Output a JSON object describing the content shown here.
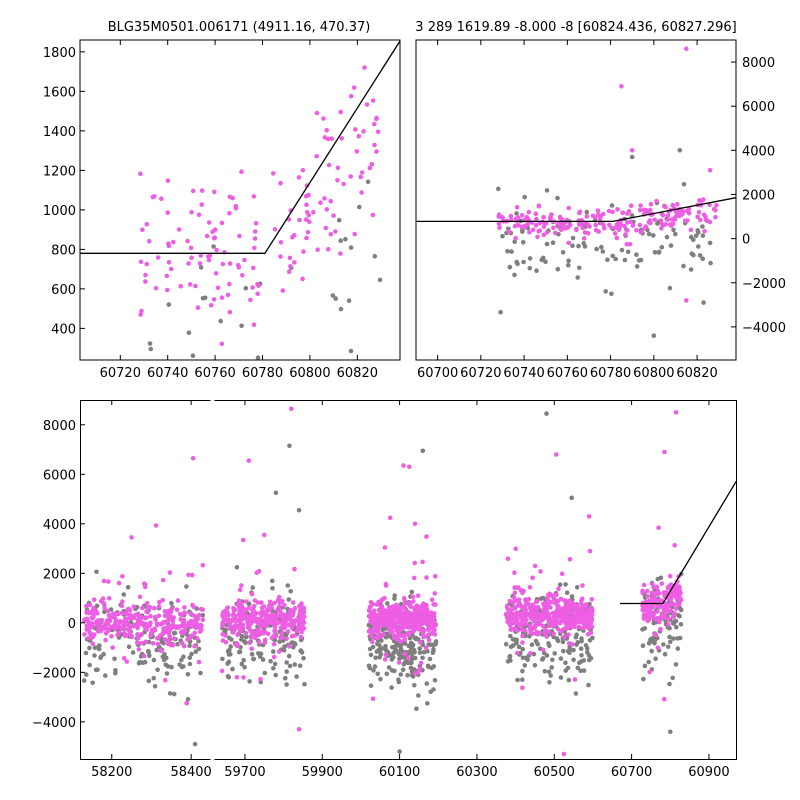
{
  "colors": {
    "magenta": "#ee5ee4",
    "gray": "#7f7f7f",
    "axis": "#000000",
    "background": "#ffffff"
  },
  "chart_data": [
    {
      "id": "zoom",
      "type": "scatter",
      "title": "BLG35M0501.006171 (4911.16, 470.37)",
      "xlabel": "",
      "ylabel": "",
      "xlim": [
        60703,
        60838
      ],
      "ylim": [
        240,
        1860
      ],
      "xticks": [
        60720,
        60740,
        60760,
        60780,
        60800,
        60820
      ],
      "yticks": [
        400,
        600,
        800,
        1000,
        1200,
        1400,
        1600,
        1800
      ],
      "model": [
        [
          60703,
          780
        ],
        [
          60781,
          780
        ],
        [
          60838,
          1855
        ]
      ],
      "series": [
        {
          "name": "magenta points",
          "color_key": "magenta",
          "x_range": [
            60728,
            60829
          ],
          "y_base": 780,
          "y_slope_start": 60781,
          "y_slope": 13.7,
          "noise": 190,
          "count": 165
        },
        {
          "name": "gray points",
          "color_key": "gray",
          "x_range": [
            60732,
            60830
          ],
          "y_base": 420,
          "y_slope_start": 60790,
          "y_slope": 9,
          "noise": 320,
          "count": 40
        }
      ]
    },
    {
      "id": "season",
      "type": "scatter",
      "title": "3 289 1619.89 -8.000 -8 [60824.436, 60827.296]",
      "xlabel": "",
      "ylabel": "",
      "xlim": [
        60690,
        60838
      ],
      "ylim": [
        -5500,
        9000
      ],
      "y_axis_side": "right",
      "xticks": [
        60700,
        60720,
        60740,
        60760,
        60780,
        60800,
        60820
      ],
      "yticks": [
        -4000,
        -2000,
        0,
        2000,
        4000,
        6000,
        8000
      ],
      "model": [
        [
          60690,
          780
        ],
        [
          60781,
          780
        ],
        [
          60838,
          1855
        ]
      ],
      "series": [
        {
          "name": "magenta points",
          "color_key": "magenta",
          "x_range": [
            60728,
            60829
          ],
          "y_base": 650,
          "y_slope_start": 60781,
          "y_slope": 13.7,
          "noise": 350,
          "count": 210
        },
        {
          "name": "gray points",
          "color_key": "gray",
          "x_range": [
            60728,
            60829
          ],
          "y_base": -200,
          "y_slope_start": 60781,
          "y_slope": 5,
          "noise": 900,
          "count": 120
        }
      ],
      "outliers": [
        [
          60785,
          6900,
          "magenta"
        ],
        [
          60815,
          8600,
          "magenta"
        ],
        [
          60815,
          -2800,
          "magenta"
        ],
        [
          60790,
          4000,
          "magenta"
        ],
        [
          60812,
          4000,
          "gray"
        ],
        [
          60790,
          3700,
          "gray"
        ],
        [
          60769,
          1200,
          "gray"
        ],
        [
          60800,
          -4400,
          "gray"
        ],
        [
          60826,
          3100,
          "magenta"
        ],
        [
          60823,
          -2900,
          "gray"
        ]
      ]
    },
    {
      "id": "full",
      "type": "scatter",
      "title": "",
      "xlabel": "",
      "ylabel": "",
      "ylim": [
        -5500,
        9000
      ],
      "yticks": [
        -4000,
        -2000,
        0,
        2000,
        4000,
        6000,
        8000
      ],
      "segments": [
        {
          "xlim": [
            58120,
            58450
          ],
          "xticks": [
            58200,
            58400
          ]
        },
        {
          "xlim": [
            59620,
            60970
          ],
          "xticks": [
            59700,
            59900,
            60100,
            60300,
            60500,
            60700,
            60900
          ]
        }
      ],
      "model": [
        [
          60670,
          780
        ],
        [
          60781,
          780
        ],
        [
          60970,
          5700
        ]
      ],
      "seasons": [
        {
          "x_range": [
            58130,
            58430
          ],
          "magenta_base": 0,
          "gray_base": -700,
          "count_m": 320,
          "count_g": 160
        },
        {
          "x_range": [
            59640,
            59855
          ],
          "magenta_base": 100,
          "gray_base": -600,
          "count_m": 320,
          "count_g": 160
        },
        {
          "x_range": [
            60020,
            60195
          ],
          "magenta_base": 150,
          "gray_base": -900,
          "count_m": 380,
          "count_g": 230
        },
        {
          "x_range": [
            60375,
            60600
          ],
          "magenta_base": 300,
          "gray_base": -500,
          "count_m": 380,
          "count_g": 200
        },
        {
          "x_range": [
            60728,
            60829
          ],
          "magenta_base": 650,
          "gray_base": -200,
          "count_m": 170,
          "count_g": 90
        }
      ],
      "outliers": [
        [
          58250,
          3450,
          "magenta"
        ],
        [
          58405,
          6650,
          "magenta"
        ],
        [
          59710,
          6550,
          "magenta"
        ],
        [
          59750,
          3550,
          "magenta"
        ],
        [
          59820,
          8650,
          "magenta"
        ],
        [
          59815,
          7150,
          "gray"
        ],
        [
          59780,
          5250,
          "gray"
        ],
        [
          59840,
          4550,
          "gray"
        ],
        [
          60110,
          6350,
          "magenta"
        ],
        [
          60125,
          6300,
          "magenta"
        ],
        [
          60160,
          6950,
          "gray"
        ],
        [
          60140,
          4000,
          "magenta"
        ],
        [
          60480,
          8450,
          "gray"
        ],
        [
          60505,
          6800,
          "magenta"
        ],
        [
          60545,
          5050,
          "gray"
        ],
        [
          60590,
          4300,
          "magenta"
        ],
        [
          60785,
          6900,
          "magenta"
        ],
        [
          60815,
          8500,
          "magenta"
        ],
        [
          58410,
          -4900,
          "gray"
        ],
        [
          59840,
          -4300,
          "magenta"
        ],
        [
          60100,
          -5200,
          "gray"
        ],
        [
          60525,
          -5300,
          "magenta"
        ],
        [
          60800,
          -4400,
          "gray"
        ]
      ]
    }
  ]
}
